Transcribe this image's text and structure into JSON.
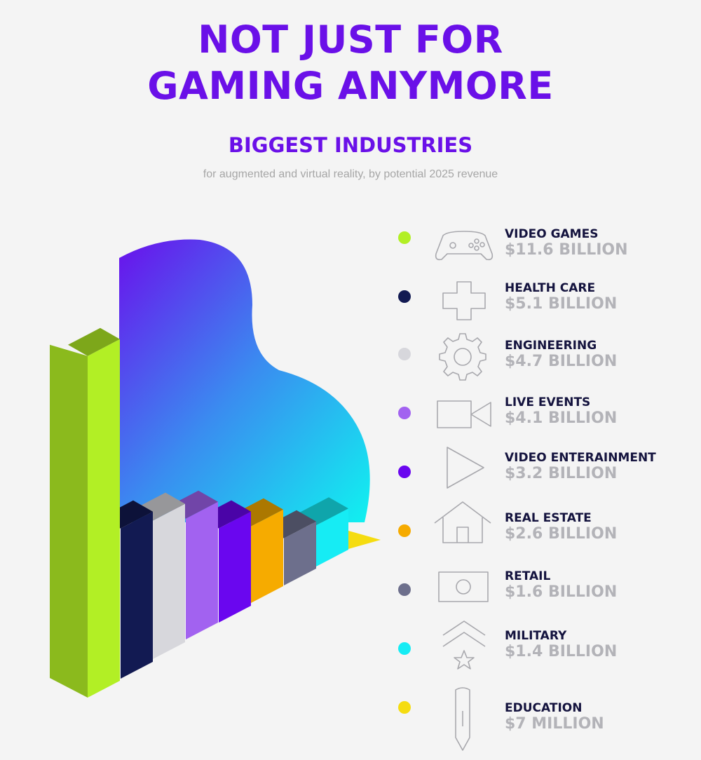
{
  "headline": {
    "line1": "NOT JUST FOR",
    "line2": "GAMING ANYMORE"
  },
  "chart_data": {
    "type": "bar",
    "title": "BIGGEST INDUSTRIES",
    "subtitle": "for augmented and virtual reality, by potential 2025 revenue",
    "unit": "billion USD",
    "categories": [
      "VIDEO GAMES",
      "HEALTH CARE",
      "ENGINEERING",
      "LIVE EVENTS",
      "VIDEO ENTERAINMENT",
      "REAL ESTATE",
      "RETAIL",
      "MILITARY",
      "EDUCATION"
    ],
    "values": [
      11.6,
      5.1,
      4.7,
      4.1,
      3.2,
      2.6,
      1.6,
      1.4,
      0.007
    ],
    "value_labels": [
      "$11.6 BILLION",
      "$5.1 BILLION",
      "$4.7 BILLION",
      "$4.1 BILLION",
      "$3.2 BILLION",
      "$2.6 BILLION",
      "$1.6 BILLION",
      "$1.4 BILLION",
      "$7 MILLION"
    ],
    "colors": [
      "#b2ef25",
      "#121a52",
      "#d7d7dc",
      "#a262f0",
      "#6a06ef",
      "#f6ab00",
      "#6d6f8c",
      "#16ecf4",
      "#f5dc10"
    ],
    "icons": [
      "gamepad-icon",
      "medical-cross-icon",
      "gear-icon",
      "video-camera-icon",
      "play-icon",
      "house-icon",
      "banknote-icon",
      "chevron-star-icon",
      "pencil-icon"
    ],
    "legend_placement": "right",
    "grid": false
  }
}
